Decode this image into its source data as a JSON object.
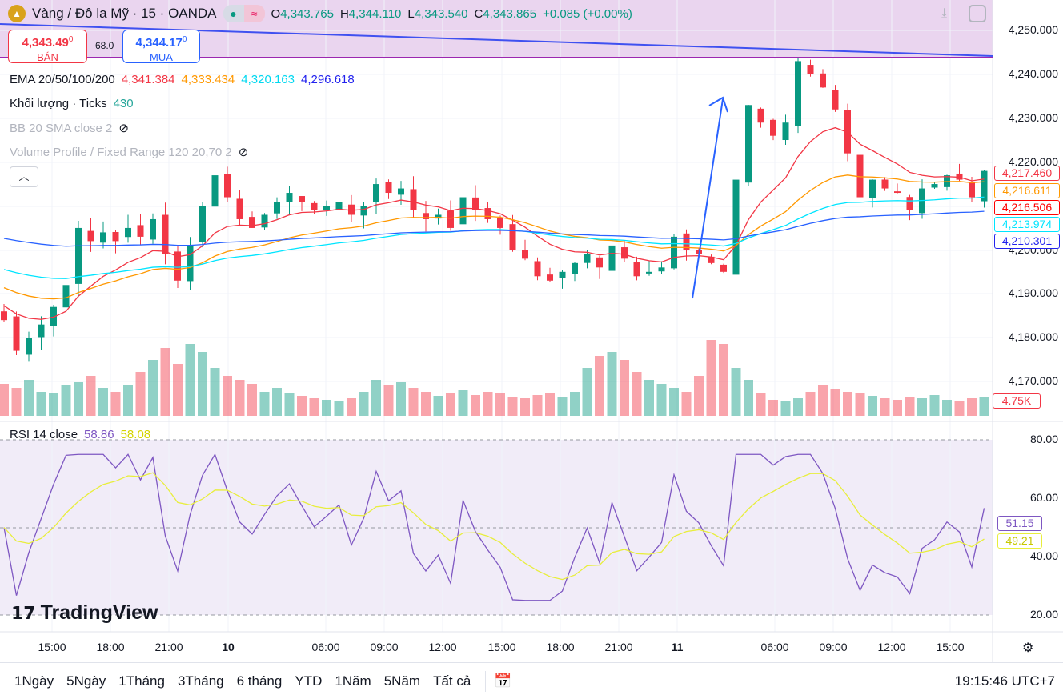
{
  "header": {
    "symbol": "Vàng / Đô la Mỹ · 15 · OANDA",
    "logo_icon": "gold-bars-icon",
    "o_label": "O",
    "o": "4,343.765",
    "h_label": "H",
    "h": "4,344.110",
    "l_label": "L",
    "l": "4,343.540",
    "c_label": "C",
    "c": "4,343.865",
    "change": "+0.085 (+0.00%)"
  },
  "trade": {
    "sell_price": "4,343.49",
    "sell_sup": "0",
    "sell_label": "BÁN",
    "spread": "68.0",
    "buy_price": "4,344.17",
    "buy_sup": "0",
    "buy_label": "MUA"
  },
  "legend": {
    "ema_label": "EMA 20/50/100/200",
    "ema_values": [
      "4,341.384",
      "4,333.434",
      "4,320.163",
      "4,296.618"
    ],
    "vol_label": "Khối lượng · Ticks",
    "vol_value": "430",
    "bb_label": "BB 20 SMA close 2",
    "vp_label": "Volume Profile / Fixed Range 120 20,70 2",
    "rsi_label": "RSI 14 close",
    "rsi_values": [
      "58.86",
      "58.08"
    ]
  },
  "colors": {
    "up": "#089981",
    "down": "#f23645",
    "ema20": "#f23645",
    "ema50": "#ff9800",
    "ema100": "#00e5ff",
    "ema200": "#2962ff",
    "rsi": "#7e57c2",
    "rsi_ma": "#e8ee3c"
  },
  "price_axis": {
    "ticks": [
      "4,250.000",
      "4,240.000",
      "4,230.000",
      "4,220.000",
      "4,200.000",
      "4,190.000",
      "4,180.000",
      "4,170.000"
    ],
    "badges": [
      "4,217.460",
      "4,216.611",
      "4,216.506",
      "4,213.974",
      "4,210.301"
    ],
    "volume_badge": "4.75K"
  },
  "rsi_axis": {
    "ticks": [
      "80.00",
      "60.00",
      "40.00",
      "20.00"
    ],
    "badges": [
      "51.15",
      "49.21"
    ]
  },
  "time_axis": [
    "15:00",
    "18:00",
    "21:00",
    "10",
    "06:00",
    "09:00",
    "12:00",
    "15:00",
    "18:00",
    "21:00",
    "11",
    "06:00",
    "09:00",
    "12:00",
    "15:00"
  ],
  "watermark": "TradingView",
  "ranges": [
    "1Ngày",
    "5Ngày",
    "1Tháng",
    "3Tháng",
    "6 tháng",
    "YTD",
    "1Năm",
    "5Năm",
    "Tất cả"
  ],
  "clock": "19:15:46 UTC+7",
  "chart_data": {
    "type": "candlestick",
    "closes": [
      4184,
      4177,
      4180,
      4183,
      4187,
      4192,
      4205,
      4202,
      4204,
      4202,
      4205,
      4203,
      4207,
      4199,
      4193,
      4201,
      4210,
      4217,
      4212,
      4207,
      4205,
      4208,
      4211,
      4213,
      4211,
      4209,
      4210,
      4211,
      4208,
      4210,
      4215,
      4213,
      4214,
      4209,
      4207,
      4208,
      4205,
      4212,
      4209,
      4207,
      4205,
      4200,
      4198,
      4194,
      4193,
      4195,
      4197,
      4199,
      4196,
      4201,
      4198,
      4194,
      4195,
      4196,
      4203,
      4200,
      4199,
      4197,
      4195,
      4216,
      4233,
      4229,
      4226,
      4229,
      4243,
      4240,
      4237,
      4232,
      4222,
      4212,
      4216,
      4214,
      4213,
      4209,
      4214,
      4215,
      4217,
      4216,
      4212,
      4218
    ],
    "volumes": [
      40,
      35,
      45,
      30,
      28,
      38,
      42,
      50,
      35,
      30,
      38,
      55,
      70,
      85,
      65,
      90,
      80,
      60,
      50,
      45,
      40,
      30,
      35,
      28,
      25,
      22,
      20,
      18,
      22,
      30,
      45,
      38,
      42,
      35,
      30,
      25,
      28,
      32,
      26,
      30,
      28,
      24,
      22,
      26,
      28,
      24,
      30,
      60,
      75,
      80,
      70,
      55,
      45,
      40,
      35,
      30,
      50,
      95,
      90,
      60,
      45,
      28,
      20,
      18,
      22,
      30,
      38,
      34,
      30,
      28,
      25,
      22,
      20,
      24,
      22,
      26,
      20,
      18,
      22,
      24
    ],
    "ema_seeds": [
      4188,
      4192,
      4196,
      4203
    ],
    "ylim": [
      4170,
      4250
    ],
    "rsi_ylim": [
      20,
      80
    ]
  }
}
